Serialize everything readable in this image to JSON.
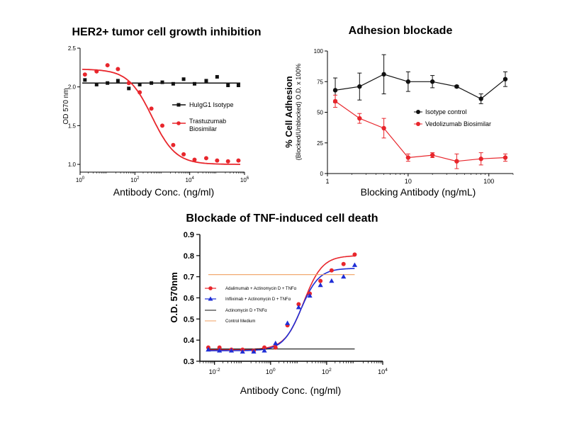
{
  "colors": {
    "red": "#e8262c",
    "black": "#111111",
    "blue": "#1f2ed6",
    "orange": "#f0a060"
  },
  "chart_data": [
    {
      "type": "scatter",
      "title": "HER2+ tumor cell growth inhibition",
      "xlabel": "Antibody Conc. (ng/ml)",
      "ylabel": "OD 570 nm",
      "xscale": "log",
      "xlim": [
        1,
        1000000
      ],
      "ylim": [
        0.9,
        2.5
      ],
      "x_ticks": [
        {
          "v": 1,
          "base": "10",
          "exp": "0"
        },
        {
          "v": 100,
          "base": "10",
          "exp": "2"
        },
        {
          "v": 10000,
          "base": "10",
          "exp": "4"
        },
        {
          "v": 1000000,
          "base": "10",
          "exp": "6"
        }
      ],
      "y_ticks": [
        {
          "v": 1.0,
          "label": "1.0"
        },
        {
          "v": 1.5,
          "label": "1.5"
        },
        {
          "v": 2.0,
          "label": "2.0"
        },
        {
          "v": 2.5,
          "label": "2.5"
        }
      ],
      "legend_position": "right",
      "series": [
        {
          "name": "HuIgG1 Isotype",
          "color": "#111111",
          "marker": "square",
          "x": [
            1.5,
            4,
            10,
            24,
            60,
            150,
            400,
            1000,
            2500,
            6000,
            15000,
            40000,
            100000,
            250000,
            600000
          ],
          "y": [
            2.09,
            2.03,
            2.05,
            2.08,
            1.98,
            2.03,
            2.05,
            2.06,
            2.04,
            2.1,
            2.04,
            2.08,
            2.13,
            2.02,
            2.02
          ],
          "fit": {
            "type": "flat",
            "value": 2.05
          }
        },
        {
          "name": "Trastuzumab Biosimilar",
          "color": "#e8262c",
          "marker": "circle",
          "x": [
            1.5,
            4,
            10,
            24,
            60,
            150,
            400,
            1000,
            2500,
            6000,
            15000,
            40000,
            100000,
            250000,
            600000
          ],
          "y": [
            2.16,
            2.2,
            2.28,
            2.23,
            2.05,
            1.93,
            1.72,
            1.5,
            1.25,
            1.13,
            1.06,
            1.08,
            1.05,
            1.04,
            1.05
          ],
          "fit": {
            "type": "4pl",
            "top": 2.23,
            "bottom": 1.0,
            "ec50": 420,
            "hill": 1.0
          }
        }
      ]
    },
    {
      "type": "line",
      "title": "Adhesion blockade",
      "xlabel": "Blocking Antibody (ng/mL)",
      "ylabel": "% Cell Adhesion",
      "ylabel_sub": "(Blocked/Unblocked) O.D. x 100%",
      "xscale": "log",
      "xlim": [
        1,
        200
      ],
      "ylim": [
        0,
        100
      ],
      "x_ticks": [
        {
          "v": 1,
          "label": "1"
        },
        {
          "v": 10,
          "label": "10"
        },
        {
          "v": 100,
          "label": "100"
        }
      ],
      "y_ticks": [
        {
          "v": 0,
          "label": "0"
        },
        {
          "v": 25,
          "label": "25"
        },
        {
          "v": 50,
          "label": "50"
        },
        {
          "v": 75,
          "label": "75"
        },
        {
          "v": 100,
          "label": "100"
        }
      ],
      "legend_position": "center-right",
      "series": [
        {
          "name": "Isotype control",
          "color": "#111111",
          "x": [
            1.25,
            2.5,
            5,
            10,
            20,
            40,
            80,
            160
          ],
          "y": [
            68,
            71,
            81,
            75,
            75,
            71,
            61,
            77
          ],
          "err": [
            10,
            11,
            16,
            8,
            5,
            1,
            4,
            6
          ]
        },
        {
          "name": "Vedolizumab Biosimilar",
          "color": "#e8262c",
          "x": [
            1.25,
            2.5,
            5,
            10,
            20,
            40,
            80,
            160
          ],
          "y": [
            59,
            45,
            37,
            13,
            15,
            10,
            12,
            13
          ],
          "err": [
            5,
            4,
            8,
            3,
            2,
            6,
            5,
            3
          ]
        }
      ]
    },
    {
      "type": "scatter",
      "title": "Blockade of TNF-induced cell death",
      "xlabel": "Antibody Conc. (ng/ml)",
      "ylabel": "O.D. 570nm",
      "xscale": "log",
      "xlim": [
        0.003,
        10000
      ],
      "ylim": [
        0.3,
        0.9
      ],
      "x_ticks": [
        {
          "v": 0.01,
          "base": "10",
          "exp": "-2"
        },
        {
          "v": 1,
          "base": "10",
          "exp": "0"
        },
        {
          "v": 100,
          "base": "10",
          "exp": "2"
        },
        {
          "v": 10000,
          "base": "10",
          "exp": "4"
        }
      ],
      "y_ticks": [
        {
          "v": 0.3,
          "label": "0.3"
        },
        {
          "v": 0.4,
          "label": "0.4"
        },
        {
          "v": 0.5,
          "label": "0.5"
        },
        {
          "v": 0.6,
          "label": "0.6"
        },
        {
          "v": 0.7,
          "label": "0.7"
        },
        {
          "v": 0.8,
          "label": "0.8"
        },
        {
          "v": 0.9,
          "label": "0.9"
        }
      ],
      "legend_position": "left",
      "series": [
        {
          "name": "Adalimumab + Actinomycin D + TNFα",
          "color": "#e8262c",
          "marker": "circle",
          "x": [
            0.006,
            0.015,
            0.04,
            0.1,
            0.25,
            0.6,
            1.5,
            4,
            10,
            25,
            60,
            150,
            400,
            1000
          ],
          "y": [
            0.365,
            0.365,
            0.355,
            0.355,
            0.35,
            0.365,
            0.365,
            0.47,
            0.57,
            0.62,
            0.68,
            0.73,
            0.76,
            0.805
          ],
          "fit": {
            "type": "4pl",
            "top": 0.8,
            "bottom": 0.355,
            "ec50": 15,
            "hill": 1.3
          }
        },
        {
          "name": "Infliximab + Actinomycin D + TNFα",
          "color": "#1f2ed6",
          "marker": "triangle",
          "x": [
            0.006,
            0.015,
            0.04,
            0.1,
            0.25,
            0.6,
            1.5,
            4,
            10,
            25,
            60,
            150,
            400,
            1000
          ],
          "y": [
            0.355,
            0.35,
            0.35,
            0.345,
            0.345,
            0.35,
            0.385,
            0.48,
            0.555,
            0.61,
            0.66,
            0.68,
            0.7,
            0.755
          ],
          "fit": {
            "type": "4pl",
            "top": 0.74,
            "bottom": 0.35,
            "ec50": 12,
            "hill": 1.35
          }
        },
        {
          "name": "Actinomycin D +TNFα",
          "color": "#111111",
          "marker": "line",
          "x": [
            0.006,
            1000
          ],
          "y": [
            0.358,
            0.358
          ]
        },
        {
          "name": "Control Medium",
          "color": "#f0a060",
          "marker": "line",
          "x": [
            0.006,
            1000
          ],
          "y": [
            0.71,
            0.71
          ]
        }
      ]
    }
  ]
}
